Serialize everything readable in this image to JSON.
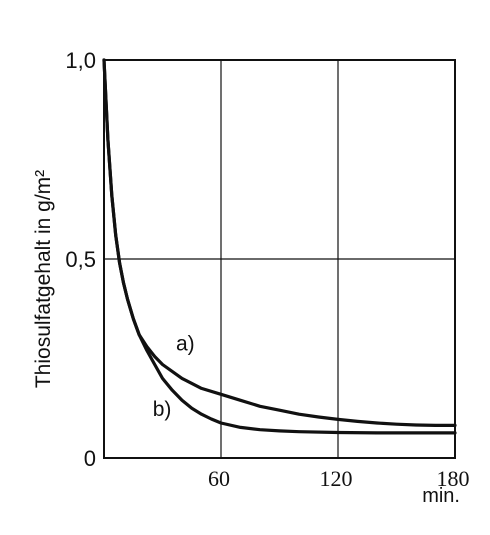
{
  "chart_data": {
    "type": "line",
    "ylabel": "Thiosulfatgehalt in g/m²",
    "xunit": "min.",
    "xlim": [
      0,
      180
    ],
    "ylim": [
      0,
      1.0
    ],
    "xticks": [
      {
        "value": 60,
        "label": "60"
      },
      {
        "value": 120,
        "label": "120"
      },
      {
        "value": 180,
        "label": "180"
      }
    ],
    "yticks": [
      {
        "value": 0,
        "label": "0"
      },
      {
        "value": 0.5,
        "label": "0,5"
      },
      {
        "value": 1.0,
        "label": "1,0"
      }
    ],
    "grid": true,
    "series": [
      {
        "name": "a)",
        "x": [
          0,
          2,
          4,
          6,
          8,
          10,
          12,
          15,
          18,
          22,
          26,
          30,
          40,
          50,
          60,
          70,
          80,
          90,
          100,
          110,
          120,
          130,
          140,
          150,
          160,
          170,
          180
        ],
        "y": [
          1.0,
          0.8,
          0.66,
          0.56,
          0.49,
          0.44,
          0.4,
          0.35,
          0.31,
          0.28,
          0.255,
          0.235,
          0.2,
          0.175,
          0.16,
          0.145,
          0.13,
          0.12,
          0.11,
          0.103,
          0.097,
          0.092,
          0.088,
          0.085,
          0.083,
          0.082,
          0.082
        ]
      },
      {
        "name": "b)",
        "x": [
          0,
          2,
          4,
          6,
          8,
          10,
          12,
          15,
          18,
          22,
          26,
          30,
          35,
          40,
          45,
          50,
          55,
          60,
          70,
          80,
          90,
          100,
          120,
          140,
          160,
          180
        ],
        "y": [
          1.0,
          0.8,
          0.66,
          0.56,
          0.49,
          0.44,
          0.4,
          0.35,
          0.31,
          0.27,
          0.235,
          0.2,
          0.17,
          0.145,
          0.125,
          0.11,
          0.098,
          0.088,
          0.077,
          0.071,
          0.068,
          0.066,
          0.064,
          0.063,
          0.063,
          0.063
        ]
      }
    ]
  }
}
